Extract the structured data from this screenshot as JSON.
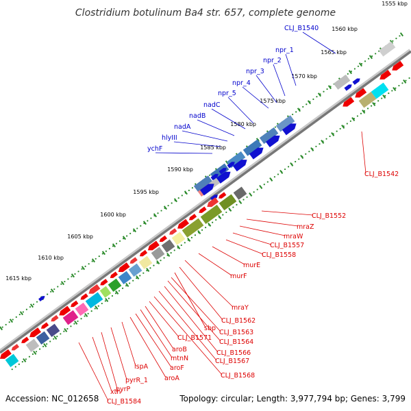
{
  "title": "Clostridium botulinum Ba4 str. 657, complete genome",
  "footer": {
    "accession": "Accession: NC_012658",
    "summary": "Topology: circular; Length: 3,977,794 bp; Genes: 3,799"
  },
  "colors": {
    "forward_labels": "#0000cc",
    "reverse_labels": "#dd0000",
    "backbone": "#777777",
    "ticks": "#2a8a2a"
  },
  "ticks": [
    "1555 kbp",
    "1560 kbp",
    "1565 kbp",
    "1570 kbp",
    "1575 kbp",
    "1580 kbp",
    "1585 kbp",
    "1590 kbp",
    "1595 kbp",
    "1600 kbp",
    "1605 kbp",
    "1610 kbp",
    "1615 kbp"
  ],
  "forward_labels": [
    "CLJ_B1540",
    "npr_1",
    "npr_2",
    "npr_3",
    "npr_4",
    "npr_5",
    "nadC",
    "nadB",
    "nadA",
    "hlyIII",
    "ychF"
  ],
  "reverse_labels": [
    "CLJ_B1542",
    "CLJ_B1552",
    "mraZ",
    "mraW",
    "CLJ_B1557",
    "CLJ_B1558",
    "murE",
    "murF",
    "mraY",
    "CLJ_B1562",
    "sbp",
    "CLJ_B1563",
    "CLJ_B1564",
    "CLJ_B1566",
    "CLJ_B1567",
    "CLJ_B1568",
    "CLJ_B1571",
    "aroB",
    "mtnN",
    "aroF",
    "aroA",
    "lspA",
    "pyrR_1",
    "pyrP",
    "xth",
    "CLJ_B1584"
  ]
}
